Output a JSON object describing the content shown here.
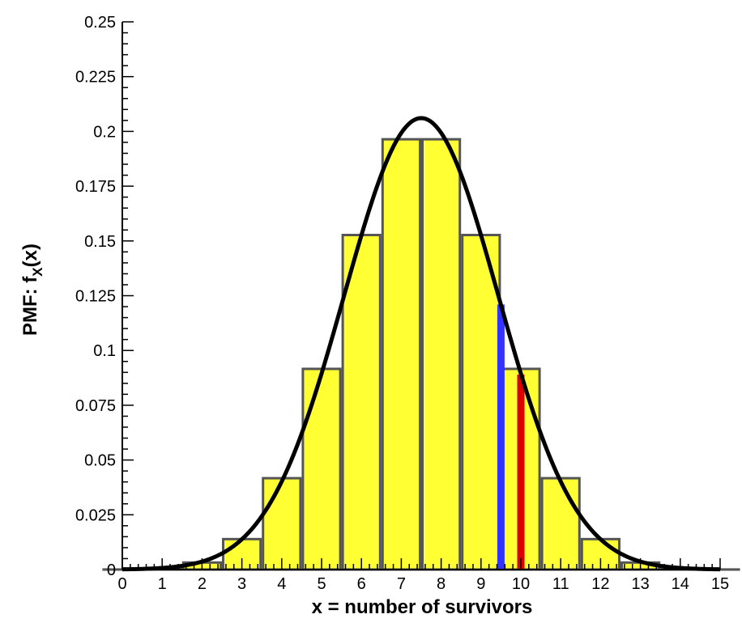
{
  "chart_data": {
    "type": "bar",
    "xlabel": "x = number of survivors",
    "ylabel": "PMF: f",
    "ylabel_sub": "X",
    "ylabel_tail": "(x)",
    "xlim": [
      0,
      15
    ],
    "ylim": [
      0,
      0.25
    ],
    "xticks": [
      "0",
      "1",
      "2",
      "3",
      "4",
      "5",
      "6",
      "7",
      "8",
      "9",
      "10",
      "11",
      "12",
      "13",
      "14",
      "15"
    ],
    "yticks": [
      "0",
      "0.025",
      "0.05",
      "0.075",
      "0.1",
      "0.125",
      "0.15",
      "0.175",
      "0.2",
      "0.225",
      "0.25"
    ],
    "bars": {
      "x": [
        0,
        1,
        2,
        3,
        4,
        5,
        6,
        7,
        8,
        9,
        10,
        11,
        12,
        13,
        14,
        15
      ],
      "values": [
        3e-05,
        0.0005,
        0.0032,
        0.0139,
        0.0417,
        0.0916,
        0.1527,
        0.1964,
        0.1964,
        0.1527,
        0.0916,
        0.0417,
        0.0139,
        0.0032,
        0.0005,
        3e-05
      ],
      "fill": "#ffff33",
      "stroke": "#555555"
    },
    "curve": {
      "type": "normal",
      "mean": 7.5,
      "sd": 1.936,
      "x": [
        0,
        0.5,
        1,
        1.5,
        2,
        2.5,
        3,
        3.5,
        4,
        4.5,
        5,
        5.5,
        6,
        6.5,
        7,
        7.5,
        8,
        8.5,
        9,
        9.5,
        10,
        10.5,
        11,
        11.5,
        12,
        12.5,
        13,
        13.5,
        14,
        14.5,
        15
      ],
      "values": [
        0.0001,
        0.0002,
        0.0006,
        0.0017,
        0.004,
        0.0074,
        0.0137,
        0.0244,
        0.0401,
        0.0622,
        0.0894,
        0.1213,
        0.1528,
        0.1801,
        0.199,
        0.206,
        0.199,
        0.1801,
        0.1528,
        0.1213,
        0.0894,
        0.0622,
        0.0401,
        0.0244,
        0.0137,
        0.0074,
        0.004,
        0.0017,
        0.0006,
        0.0002,
        0.0001
      ],
      "color": "#000000"
    },
    "highlights": [
      {
        "x": 9.5,
        "value": 0.121,
        "color": "#3333ff"
      },
      {
        "x": 10,
        "value": 0.089,
        "color": "#dd0000"
      }
    ]
  }
}
